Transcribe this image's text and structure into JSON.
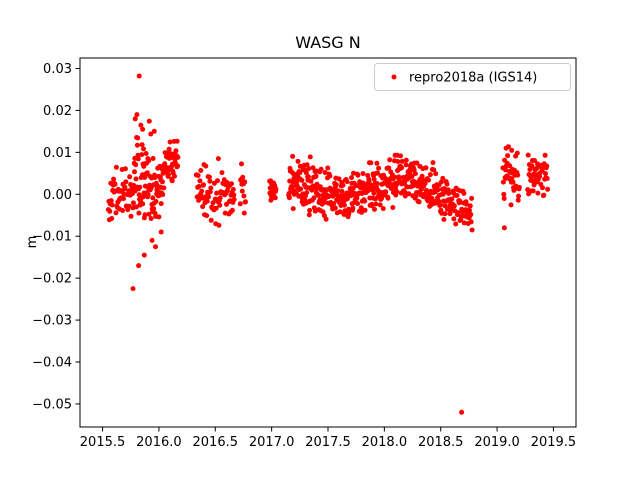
{
  "figure": {
    "title": "WASG N",
    "ylabel": "m",
    "background": "#ffffff"
  },
  "legend": {
    "label": "repro2018a (IGS14)",
    "marker_color": "#ff0000",
    "border_color": "#cccccc",
    "position": "upper right"
  },
  "chart_data": {
    "type": "scatter",
    "title": "WASG N",
    "xlabel": "",
    "ylabel": "m",
    "series_name": "repro2018a (IGS14)",
    "marker": {
      "shape": "circle",
      "color": "#ff0000",
      "radius_px": 2.5
    },
    "grid": false,
    "legend_position": "upper right",
    "xlim": [
      2015.3,
      2019.7
    ],
    "ylim": [
      -0.0555,
      0.0325
    ],
    "xticks": [
      {
        "value": 2015.5,
        "label": "2015.5"
      },
      {
        "value": 2016.0,
        "label": "2016.0"
      },
      {
        "value": 2016.5,
        "label": "2016.5"
      },
      {
        "value": 2017.0,
        "label": "2017.0"
      },
      {
        "value": 2017.5,
        "label": "2017.5"
      },
      {
        "value": 2018.0,
        "label": "2018.0"
      },
      {
        "value": 2018.5,
        "label": "2018.5"
      },
      {
        "value": 2019.0,
        "label": "2019.0"
      },
      {
        "value": 2019.5,
        "label": "2019.5"
      }
    ],
    "yticks": [
      {
        "value": 0.03,
        "label": "0.03"
      },
      {
        "value": 0.02,
        "label": "0.02"
      },
      {
        "value": 0.01,
        "label": "0.01"
      },
      {
        "value": 0.0,
        "label": "0.00"
      },
      {
        "value": -0.01,
        "label": "−0.01"
      },
      {
        "value": -0.02,
        "label": "−0.02"
      },
      {
        "value": -0.03,
        "label": "−0.03"
      },
      {
        "value": -0.04,
        "label": "−0.04"
      },
      {
        "value": -0.05,
        "label": "−0.05"
      }
    ],
    "seed": 42,
    "segments": [
      {
        "x0": 2015.55,
        "x1": 2015.78,
        "n": 55,
        "mean0": -0.001,
        "mean1": 0.001,
        "sigma": 0.0028,
        "ymin": -0.007,
        "ymax": 0.008
      },
      {
        "x0": 2015.78,
        "x1": 2015.96,
        "n": 70,
        "mean0": 0.003,
        "mean1": 0.003,
        "sigma": 0.006,
        "ymin": -0.016,
        "ymax": 0.021
      },
      {
        "x0": 2015.96,
        "x1": 2016.05,
        "n": 35,
        "mean0": -0.001,
        "mean1": 0.004,
        "sigma": 0.003,
        "ymin": -0.008,
        "ymax": 0.01
      },
      {
        "x0": 2016.05,
        "x1": 2016.17,
        "n": 40,
        "mean0": 0.006,
        "mean1": 0.0085,
        "sigma": 0.0025,
        "ymin": -0.002,
        "ymax": 0.0135
      },
      {
        "x0": 2016.33,
        "x1": 2016.67,
        "n": 85,
        "mean0": 0.001,
        "mean1": -0.0005,
        "sigma": 0.0032,
        "ymin": -0.0085,
        "ymax": 0.009
      },
      {
        "x0": 2016.72,
        "x1": 2016.77,
        "n": 14,
        "mean0": 0.001,
        "mean1": 0.001,
        "sigma": 0.0032,
        "ymin": -0.005,
        "ymax": 0.0075
      },
      {
        "x0": 2016.98,
        "x1": 2017.04,
        "n": 20,
        "mean0": 0.002,
        "mean1": 0.002,
        "sigma": 0.0032,
        "ymin": -0.004,
        "ymax": 0.008
      },
      {
        "x0": 2017.15,
        "x1": 2017.35,
        "n": 70,
        "mean0": 0.004,
        "mean1": 0.001,
        "sigma": 0.0028,
        "ymin": -0.006,
        "ymax": 0.0095
      },
      {
        "x0": 2017.35,
        "x1": 2017.65,
        "n": 100,
        "mean0": 0.001,
        "mean1": -0.001,
        "sigma": 0.0028,
        "ymin": -0.0075,
        "ymax": 0.008
      },
      {
        "x0": 2017.65,
        "x1": 2017.95,
        "n": 100,
        "mean0": -0.001,
        "mean1": 0.002,
        "sigma": 0.0028,
        "ymin": -0.007,
        "ymax": 0.0085
      },
      {
        "x0": 2017.95,
        "x1": 2018.25,
        "n": 100,
        "mean0": 0.002,
        "mean1": 0.004,
        "sigma": 0.0028,
        "ymin": -0.005,
        "ymax": 0.0105
      },
      {
        "x0": 2018.25,
        "x1": 2018.55,
        "n": 90,
        "mean0": 0.003,
        "mean1": -0.002,
        "sigma": 0.0028,
        "ymin": -0.0065,
        "ymax": 0.0095
      },
      {
        "x0": 2018.55,
        "x1": 2018.78,
        "n": 60,
        "mean0": -0.002,
        "mean1": -0.004,
        "sigma": 0.0028,
        "ymin": -0.009,
        "ymax": 0.006
      },
      {
        "x0": 2019.05,
        "x1": 2019.2,
        "n": 40,
        "mean0": 0.004,
        "mean1": 0.004,
        "sigma": 0.003,
        "ymin": -0.004,
        "ymax": 0.0115
      },
      {
        "x0": 2019.27,
        "x1": 2019.45,
        "n": 48,
        "mean0": 0.0045,
        "mean1": 0.0045,
        "sigma": 0.0026,
        "ymin": -0.003,
        "ymax": 0.0095
      }
    ],
    "outliers": [
      [
        2015.825,
        0.0282
      ],
      [
        2015.805,
        0.019
      ],
      [
        2015.79,
        0.018
      ],
      [
        2015.84,
        0.0165
      ],
      [
        2015.855,
        0.0155
      ],
      [
        2015.77,
        -0.0225
      ],
      [
        2015.82,
        -0.017
      ],
      [
        2015.87,
        -0.0145
      ],
      [
        2015.94,
        -0.011
      ],
      [
        2015.97,
        -0.0125
      ],
      [
        2016.02,
        -0.009
      ],
      [
        2018.685,
        -0.052
      ],
      [
        2019.065,
        -0.008
      ],
      [
        2019.08,
        0.011
      ],
      [
        2019.13,
        0.0105
      ]
    ]
  }
}
